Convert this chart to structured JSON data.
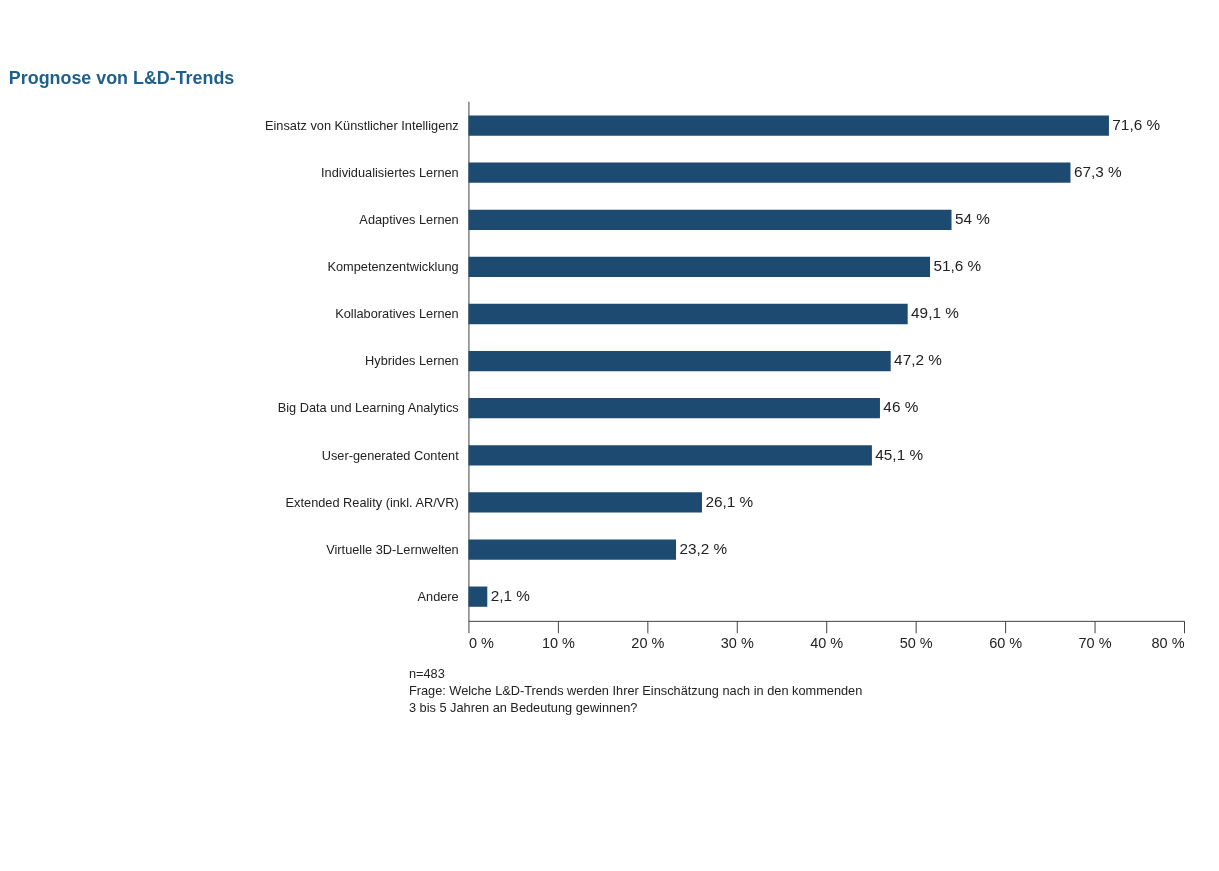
{
  "chart_data": {
    "type": "bar",
    "orientation": "horizontal",
    "title": "Prognose von L&D-Trends",
    "categories": [
      "Einsatz von Künstlicher Intelligenz",
      "Individualisiertes Lernen",
      "Adaptives Lernen",
      "Kompetenzentwicklung",
      "Kollaboratives Lernen",
      "Hybrides Lernen",
      "Big Data und Learning Analytics",
      "User-generated Content",
      "Extended Reality (inkl. AR/VR)",
      "Virtuelle 3D-Lernwelten",
      "Andere"
    ],
    "values": [
      71.6,
      67.3,
      54,
      51.6,
      49.1,
      47.2,
      46,
      45.1,
      26.1,
      23.2,
      2.1
    ],
    "value_labels": [
      "71,6 %",
      "67,3 %",
      "54 %",
      "51,6 %",
      "49,1 %",
      "47,2 %",
      "46 %",
      "45,1 %",
      "26,1 %",
      "23,2 %",
      "2,1 %"
    ],
    "color": "#1c4a70",
    "xlim": [
      0,
      80
    ],
    "xticks": [
      {
        "value": 0,
        "label": "0 %"
      },
      {
        "value": 10,
        "label": "10 %"
      },
      {
        "value": 20,
        "label": "20 %"
      },
      {
        "value": 30,
        "label": "30 %"
      },
      {
        "value": 40,
        "label": "40 %"
      },
      {
        "value": 50,
        "label": "50 %"
      },
      {
        "value": 60,
        "label": "60 %"
      },
      {
        "value": 70,
        "label": "70 %"
      },
      {
        "value": 80,
        "label": "80 %"
      }
    ],
    "grid": false,
    "annotations": [
      "n=483",
      "Frage: Welche L&D-Trends werden Ihrer Einschätzung nach in den kommenden\n3 bis 5 Jahren an Bedeutung gewinnen?"
    ]
  }
}
